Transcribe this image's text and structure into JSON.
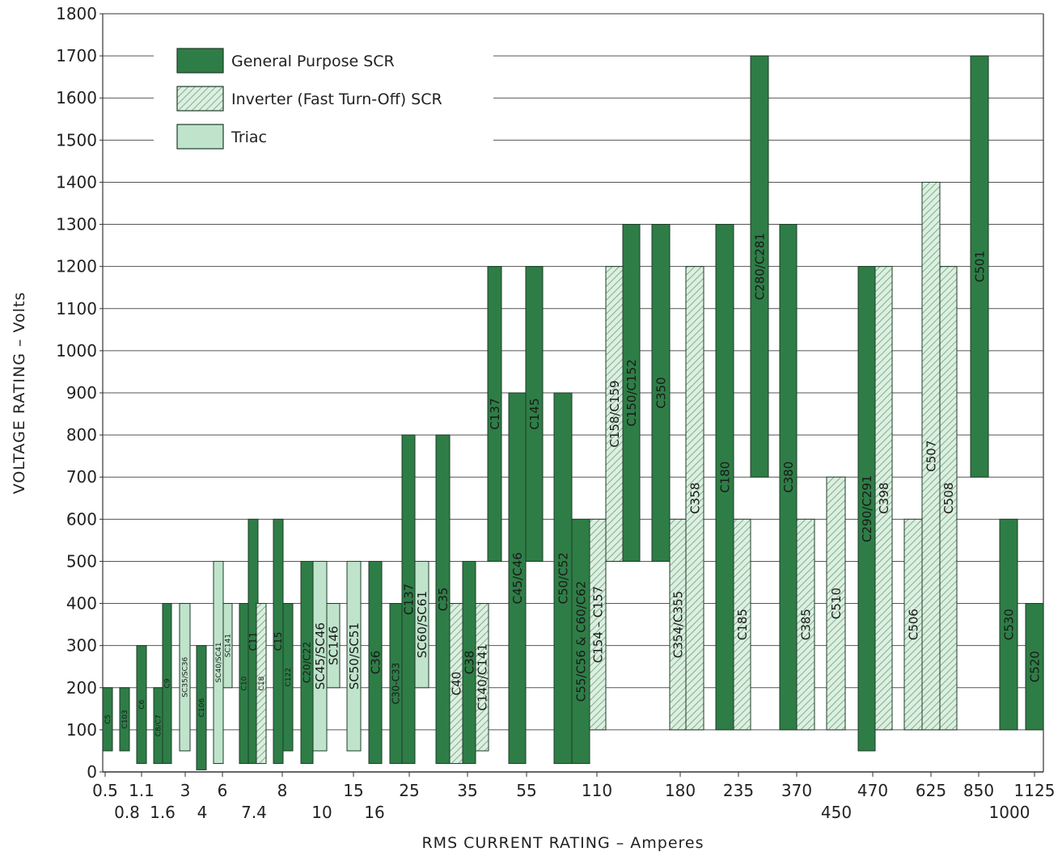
{
  "chart_data": {
    "type": "bar",
    "xlabel": "RMS CURRENT RATING – Amperes",
    "ylabel": "VOLTAGE RATING – Volts",
    "ylim": [
      0,
      1800
    ],
    "yticks": [
      0,
      100,
      200,
      300,
      400,
      500,
      600,
      700,
      800,
      900,
      1000,
      1100,
      1200,
      1300,
      1400,
      1500,
      1600,
      1700,
      1800
    ],
    "grid": true,
    "legend_position": "top-left",
    "colors": {
      "general": "#2e7d46",
      "triac": "#bfe3cb",
      "inverter_fill": "#dcefe0",
      "inverter_hatch": "#7fae8d",
      "outline": "#1f3b2a"
    },
    "legend": [
      {
        "key": "general",
        "label": "General Purpose SCR"
      },
      {
        "key": "inverter",
        "label": "Inverter (Fast Turn-Off) SCR"
      },
      {
        "key": "triac",
        "label": "Triac"
      }
    ],
    "x_categories": [
      {
        "label": "0.5",
        "row": 1
      },
      {
        "label": "0.8",
        "row": 2
      },
      {
        "label": "1.1",
        "row": 1
      },
      {
        "label": "1.6",
        "row": 2
      },
      {
        "label": "3",
        "row": 1
      },
      {
        "label": "4",
        "row": 2
      },
      {
        "label": "6",
        "row": 1
      },
      {
        "label": "7.4",
        "row": 2
      },
      {
        "label": "8",
        "row": 1
      },
      {
        "label": "10",
        "row": 2
      },
      {
        "label": "15",
        "row": 1
      },
      {
        "label": "16",
        "row": 2
      },
      {
        "label": "25",
        "row": 1
      },
      {
        "label": "35",
        "row": 1
      },
      {
        "label": "55",
        "row": 1
      },
      {
        "label": "110",
        "row": 1
      },
      {
        "label": "180",
        "row": 1
      },
      {
        "label": "235",
        "row": 1
      },
      {
        "label": "370",
        "row": 1
      },
      {
        "label": "450",
        "row": 2
      },
      {
        "label": "470",
        "row": 1
      },
      {
        "label": "625",
        "row": 1
      },
      {
        "label": "850",
        "row": 1
      },
      {
        "label": "1000",
        "row": 2
      },
      {
        "label": "1125",
        "row": 1
      }
    ],
    "bars": [
      {
        "name": "C5",
        "type": "general",
        "min": 50,
        "max": 200,
        "category": "0.5"
      },
      {
        "name": "C103",
        "type": "general",
        "min": 50,
        "max": 200,
        "category": "0.8"
      },
      {
        "name": "C6",
        "type": "general",
        "min": 20,
        "max": 300,
        "category": "1.1"
      },
      {
        "name": "C8/C7",
        "type": "general",
        "min": 20,
        "max": 200,
        "category": "1.6"
      },
      {
        "name": "C9",
        "type": "general",
        "min": 20,
        "max": 400,
        "category": "1.6"
      },
      {
        "name": "SC35/SC36",
        "type": "triac",
        "min": 50,
        "max": 400,
        "category": "3"
      },
      {
        "name": "C106",
        "type": "general",
        "min": 5,
        "max": 300,
        "category": "4"
      },
      {
        "name": "SC40/SC41",
        "type": "triac",
        "min": 20,
        "max": 500,
        "category": "6"
      },
      {
        "name": "SC141",
        "type": "triac",
        "min": 200,
        "max": 400,
        "category": "6"
      },
      {
        "name": "C10",
        "type": "general",
        "min": 20,
        "max": 400,
        "category": "7.4"
      },
      {
        "name": "C11",
        "type": "general",
        "min": 20,
        "max": 600,
        "category": "7.4"
      },
      {
        "name": "C18",
        "type": "inverter",
        "min": 20,
        "max": 400,
        "category": "7.4"
      },
      {
        "name": "C15",
        "type": "general",
        "min": 20,
        "max": 600,
        "category": "8"
      },
      {
        "name": "C122",
        "type": "general",
        "min": 50,
        "max": 400,
        "category": "8"
      },
      {
        "name": "C20/C22",
        "type": "general",
        "min": 20,
        "max": 500,
        "category": "10"
      },
      {
        "name": "SC45/SC46",
        "type": "triac",
        "min": 50,
        "max": 500,
        "category": "10"
      },
      {
        "name": "SC146",
        "type": "triac",
        "min": 200,
        "max": 400,
        "category": "10"
      },
      {
        "name": "SC50/SC51",
        "type": "triac",
        "min": 50,
        "max": 500,
        "category": "15"
      },
      {
        "name": "C36",
        "type": "general",
        "min": 20,
        "max": 500,
        "category": "16"
      },
      {
        "name": "C30-C33",
        "type": "general",
        "min": 20,
        "max": 400,
        "category": "25"
      },
      {
        "name": "C137",
        "type": "general",
        "min": 20,
        "max": 800,
        "category": "25"
      },
      {
        "name": "SC60/SC61",
        "type": "triac",
        "min": 200,
        "max": 500,
        "category": "25"
      },
      {
        "name": "C35",
        "type": "general",
        "min": 20,
        "max": 800,
        "category": "35"
      },
      {
        "name": "C40",
        "type": "inverter",
        "min": 20,
        "max": 400,
        "category": "35"
      },
      {
        "name": "C38",
        "type": "general",
        "min": 20,
        "max": 500,
        "category": "35"
      },
      {
        "name": "C140/C141",
        "type": "inverter",
        "min": 50,
        "max": 400,
        "category": "35"
      },
      {
        "name": "C137",
        "type": "general",
        "min": 500,
        "max": 1200,
        "category": "55"
      },
      {
        "name": "C45/C46",
        "type": "general",
        "min": 20,
        "max": 900,
        "category": "55"
      },
      {
        "name": "C145",
        "type": "general",
        "min": 500,
        "max": 1200,
        "category": "55"
      },
      {
        "name": "C50/C52",
        "type": "general",
        "min": 20,
        "max": 900,
        "category": "110"
      },
      {
        "name": "C55/C56 & C60/C62",
        "type": "general",
        "min": 20,
        "max": 600,
        "category": "110"
      },
      {
        "name": "C154 – C157",
        "type": "inverter",
        "min": 100,
        "max": 600,
        "category": "110"
      },
      {
        "name": "C158/C159",
        "type": "inverter",
        "min": 500,
        "max": 1200,
        "category": "110"
      },
      {
        "name": "C150/C152",
        "type": "general",
        "min": 500,
        "max": 1300,
        "category": "110"
      },
      {
        "name": "C350",
        "type": "general",
        "min": 500,
        "max": 1300,
        "category": "180"
      },
      {
        "name": "C354/C355",
        "type": "inverter",
        "min": 100,
        "max": 600,
        "category": "180"
      },
      {
        "name": "C358",
        "type": "inverter",
        "min": 100,
        "max": 1200,
        "category": "180"
      },
      {
        "name": "C180",
        "type": "general",
        "min": 100,
        "max": 1300,
        "category": "235"
      },
      {
        "name": "C185",
        "type": "inverter",
        "min": 100,
        "max": 600,
        "category": "235"
      },
      {
        "name": "C280/C281",
        "type": "general",
        "min": 700,
        "max": 1700,
        "category": "235"
      },
      {
        "name": "C380",
        "type": "general",
        "min": 100,
        "max": 1300,
        "category": "370"
      },
      {
        "name": "C385",
        "type": "inverter",
        "min": 100,
        "max": 600,
        "category": "370"
      },
      {
        "name": "C510",
        "type": "inverter",
        "min": 100,
        "max": 700,
        "category": "450"
      },
      {
        "name": "C290/C291",
        "type": "general",
        "min": 50,
        "max": 1200,
        "category": "470"
      },
      {
        "name": "C398",
        "type": "inverter",
        "min": 100,
        "max": 1200,
        "category": "470"
      },
      {
        "name": "C506",
        "type": "inverter",
        "min": 100,
        "max": 600,
        "category": "625"
      },
      {
        "name": "C507",
        "type": "inverter",
        "min": 100,
        "max": 1400,
        "category": "625"
      },
      {
        "name": "C508",
        "type": "inverter",
        "min": 100,
        "max": 1200,
        "category": "625"
      },
      {
        "name": "C501",
        "type": "general",
        "min": 700,
        "max": 1700,
        "category": "850"
      },
      {
        "name": "C530",
        "type": "general",
        "min": 100,
        "max": 600,
        "category": "1000"
      },
      {
        "name": "C520",
        "type": "general",
        "min": 100,
        "max": 400,
        "category": "1125"
      }
    ]
  }
}
